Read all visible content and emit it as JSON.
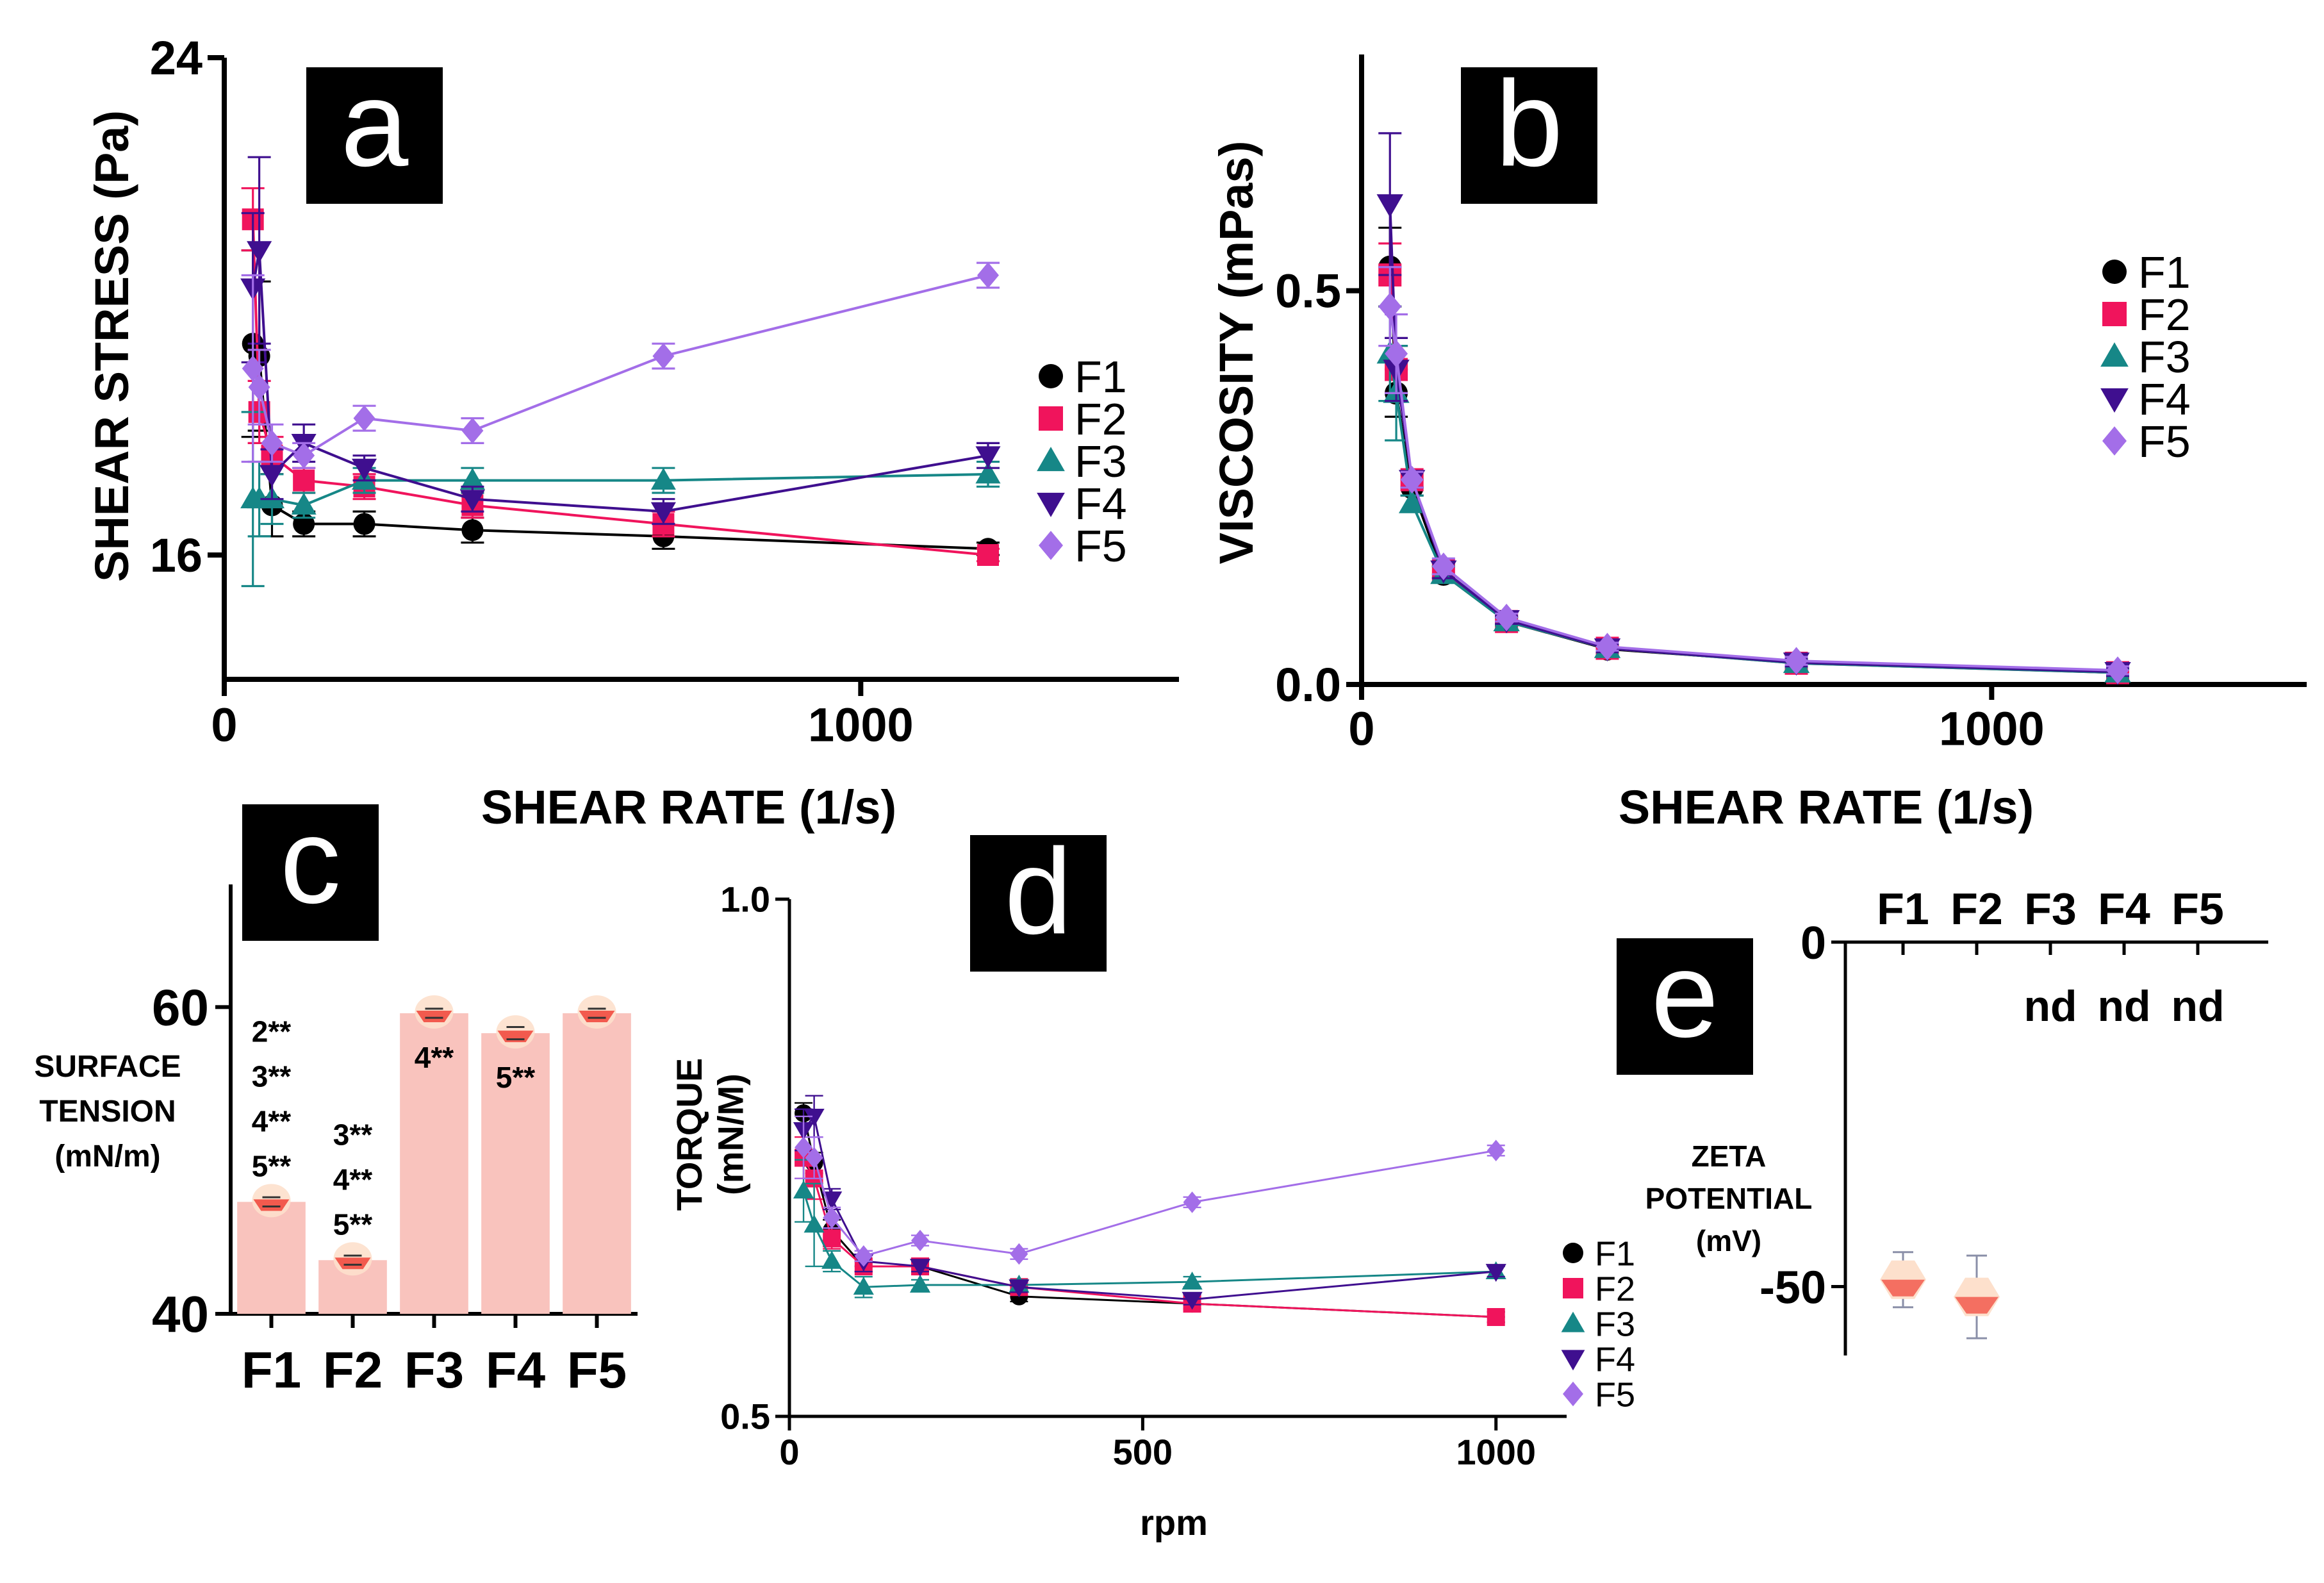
{
  "chart_data": [
    {
      "panel": "a",
      "type": "line",
      "xlabel": "SHEAR RATE (1/s)",
      "ylabel": "SHEAR STRESS (Pa)",
      "xlim": [
        0,
        1500
      ],
      "ylim": [
        14,
        24
      ],
      "xticks": [
        {
          "v": 0,
          "label": "0"
        },
        {
          "v": 1000,
          "label": "1000"
        }
      ],
      "yticks": [
        {
          "v": 16,
          "label": "16"
        },
        {
          "v": 24,
          "label": "24"
        }
      ],
      "x": [
        45,
        55,
        75,
        125,
        220,
        390,
        690,
        1200
      ],
      "series": [
        {
          "name": "F1",
          "marker": "circle",
          "color": "#000000",
          "values": [
            19.4,
            19.2,
            16.8,
            16.5,
            16.5,
            16.4,
            16.3,
            16.1
          ],
          "errors": [
            1.5,
            1.2,
            0.5,
            0.2,
            0.2,
            0.2,
            0.2,
            0.1
          ]
        },
        {
          "name": "F2",
          "marker": "square",
          "color": "#f0145c",
          "values": [
            21.4,
            18.3,
            17.6,
            17.2,
            17.1,
            16.8,
            16.5,
            16.0
          ],
          "errors": [
            0.5,
            0.5,
            0.3,
            0.2,
            0.2,
            0.2,
            0.2,
            0.1
          ]
        },
        {
          "name": "F3",
          "marker": "triangle",
          "color": "#168787",
          "values": [
            16.9,
            16.9,
            16.9,
            16.8,
            17.2,
            17.2,
            17.2,
            17.3
          ],
          "errors": [
            1.4,
            0.6,
            0.4,
            0.2,
            0.2,
            0.2,
            0.2,
            0.2
          ]
        },
        {
          "name": "F4",
          "marker": "triangle-down",
          "color": "#3f0f8f",
          "values": [
            20.3,
            20.9,
            17.3,
            17.8,
            17.4,
            16.9,
            16.7,
            17.6
          ],
          "errors": [
            1.2,
            1.5,
            0.4,
            0.3,
            0.2,
            0.2,
            0.2,
            0.2
          ]
        },
        {
          "name": "F5",
          "marker": "diamond",
          "color": "#a36ee8",
          "values": [
            19.0,
            18.7,
            17.8,
            17.6,
            18.2,
            18.0,
            19.2,
            20.5
          ],
          "errors": [
            1.5,
            0.6,
            0.3,
            0.2,
            0.2,
            0.2,
            0.2,
            0.2
          ]
        }
      ]
    },
    {
      "panel": "b",
      "type": "line",
      "xlabel": "SHEAR RATE (1/s)",
      "ylabel": "VISCOSITY (mPas)",
      "xlim": [
        0,
        1500
      ],
      "ylim": [
        0,
        0.8
      ],
      "xticks": [
        {
          "v": 0,
          "label": "0"
        },
        {
          "v": 1000,
          "label": "1000"
        }
      ],
      "yticks": [
        {
          "v": 0,
          "label": "0.0"
        },
        {
          "v": 0.5,
          "label": "0.5"
        }
      ],
      "x": [
        45,
        55,
        80,
        130,
        230,
        390,
        690,
        1200
      ],
      "series": [
        {
          "name": "F1",
          "marker": "circle",
          "color": "#000000",
          "values": [
            0.53,
            0.37,
            0.25,
            0.14,
            0.08,
            0.045,
            0.028,
            0.015
          ],
          "errors": [
            0.05,
            0.03,
            0.01,
            0.01,
            0.005,
            0.005,
            0.005,
            0.005
          ]
        },
        {
          "name": "F2",
          "marker": "square",
          "color": "#f0145c",
          "values": [
            0.52,
            0.4,
            0.26,
            0.145,
            0.08,
            0.046,
            0.027,
            0.015
          ],
          "errors": [
            0.04,
            0.03,
            0.01,
            0.01,
            0.005,
            0.005,
            0.005,
            0.005
          ]
        },
        {
          "name": "F3",
          "marker": "triangle",
          "color": "#168787",
          "values": [
            0.42,
            0.37,
            0.23,
            0.14,
            0.08,
            0.046,
            0.027,
            0.015
          ],
          "errors": [
            0.06,
            0.06,
            0.01,
            0.01,
            0.005,
            0.005,
            0.005,
            0.005
          ]
        },
        {
          "name": "F4",
          "marker": "triangle-down",
          "color": "#3f0f8f",
          "values": [
            0.61,
            0.4,
            0.26,
            0.145,
            0.082,
            0.046,
            0.028,
            0.016
          ],
          "errors": [
            0.09,
            0.04,
            0.01,
            0.01,
            0.005,
            0.005,
            0.005,
            0.005
          ]
        },
        {
          "name": "F5",
          "marker": "diamond",
          "color": "#a36ee8",
          "values": [
            0.48,
            0.42,
            0.26,
            0.15,
            0.085,
            0.048,
            0.03,
            0.018
          ],
          "errors": [
            0.05,
            0.05,
            0.01,
            0.01,
            0.005,
            0.005,
            0.005,
            0.005
          ]
        }
      ]
    },
    {
      "panel": "c",
      "type": "bar",
      "ylabel": "SURFACE TENSION (mN/m)",
      "ylabel_lines": [
        "SURFACE",
        "TENSION",
        "(mN/m)"
      ],
      "ylim": [
        40,
        68
      ],
      "yticks": [
        {
          "v": 40,
          "label": "40"
        },
        {
          "v": 60,
          "label": "60"
        }
      ],
      "categories": [
        "F1",
        "F2",
        "F3",
        "F4",
        "F5"
      ],
      "values": [
        47.3,
        43.5,
        59.6,
        58.3,
        59.6
      ],
      "errors": [
        0.3,
        0.3,
        0.3,
        0.4,
        0.3
      ],
      "annotations": [
        {
          "category": "F1",
          "lines": [
            "2**",
            "3**",
            "4**",
            "5**"
          ],
          "placement": "above"
        },
        {
          "category": "F2",
          "lines": [
            "3**",
            "4**",
            "5**"
          ],
          "placement": "above"
        },
        {
          "category": "F3",
          "lines": [
            "4**"
          ],
          "placement": "below-top"
        },
        {
          "category": "F4",
          "lines": [
            "5**"
          ],
          "placement": "below-top"
        }
      ]
    },
    {
      "panel": "d",
      "type": "line",
      "xlabel": "rpm",
      "ylabel": "TORQUE (mN/M)",
      "ylabel_lines": [
        "TORQUE",
        "(mN/M)"
      ],
      "xlim": [
        0,
        1100
      ],
      "ylim": [
        0.5,
        1.0
      ],
      "xticks": [
        {
          "v": 0,
          "label": "0"
        },
        {
          "v": 500,
          "label": "500"
        },
        {
          "v": 1000,
          "label": "1000"
        }
      ],
      "yticks": [
        {
          "v": 0.5,
          "label": "0.5"
        },
        {
          "v": 1.0,
          "label": "1.0"
        }
      ],
      "x": [
        20,
        35,
        60,
        105,
        185,
        325,
        570,
        1000
      ],
      "series": [
        {
          "name": "F1",
          "marker": "circle",
          "color": "#000000",
          "values": [
            0.793,
            0.745,
            0.68,
            0.645,
            0.645,
            0.616,
            0.609,
            0.596
          ],
          "errors": [
            0.01,
            0.01,
            0.01,
            0.005,
            0.005,
            0.005,
            0.005,
            0.005
          ]
        },
        {
          "name": "F2",
          "marker": "square",
          "color": "#f0145c",
          "values": [
            0.75,
            0.73,
            0.672,
            0.645,
            0.645,
            0.625,
            0.609,
            0.596
          ],
          "errors": [
            0.02,
            0.02,
            0.01,
            0.005,
            0.005,
            0.005,
            0.005,
            0.005
          ]
        },
        {
          "name": "F3",
          "marker": "triangle",
          "color": "#168787",
          "values": [
            0.718,
            0.685,
            0.65,
            0.625,
            0.627,
            0.627,
            0.63,
            0.64
          ],
          "errors": [
            0.03,
            0.04,
            0.01,
            0.01,
            0.005,
            0.005,
            0.005,
            0.005
          ]
        },
        {
          "name": "F4",
          "marker": "triangle-down",
          "color": "#3f0f8f",
          "values": [
            0.777,
            0.79,
            0.71,
            0.65,
            0.645,
            0.625,
            0.613,
            0.64
          ],
          "errors": [
            0.02,
            0.02,
            0.01,
            0.01,
            0.005,
            0.005,
            0.005,
            0.005
          ]
        },
        {
          "name": "F5",
          "marker": "diamond",
          "color": "#a36ee8",
          "values": [
            0.76,
            0.75,
            0.692,
            0.655,
            0.67,
            0.657,
            0.707,
            0.757
          ],
          "errors": [
            0.03,
            0.02,
            0.01,
            0.005,
            0.005,
            0.005,
            0.005,
            0.005
          ]
        }
      ]
    },
    {
      "panel": "e",
      "type": "bar",
      "ylabel": "ZETA POTENTIAL (mV)",
      "ylabel_lines": [
        "ZETA",
        "POTENTIAL",
        "(mV)"
      ],
      "ylim": [
        -60,
        0
      ],
      "yticks": [
        {
          "v": 0,
          "label": "0"
        },
        {
          "v": -50,
          "label": "-50"
        }
      ],
      "categories": [
        "F1",
        "F2",
        "F3",
        "F4",
        "F5"
      ],
      "values": [
        -49.0,
        -51.5,
        null,
        null,
        null
      ],
      "errors": [
        4.0,
        6.0,
        null,
        null,
        null
      ],
      "not_determined_label": "nd"
    }
  ],
  "panel_badges": [
    "a",
    "b",
    "c",
    "d",
    "e"
  ],
  "colors": {
    "F1": "#000000",
    "F2": "#f0145c",
    "F3": "#168787",
    "F4": "#3f0f8f",
    "F5": "#a36ee8",
    "bar_fill": "#f9c3bd",
    "bar_marker": "#f25a4e",
    "marker_halo": "#fde0cc"
  }
}
